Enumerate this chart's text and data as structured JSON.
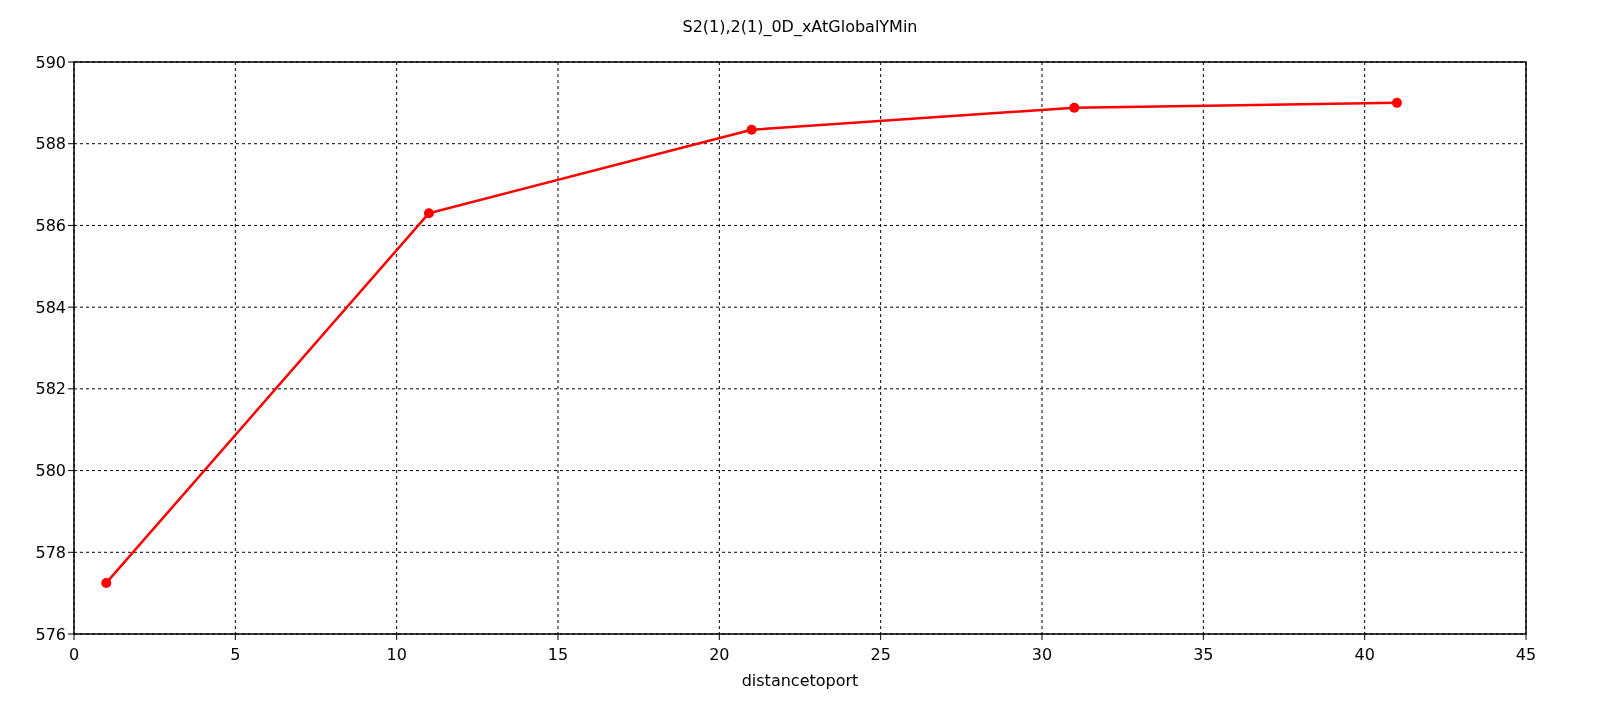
{
  "chart_data": {
    "type": "line",
    "title": "S2(1),2(1)_0D_xAtGlobalYMin",
    "xlabel": "distancetoport",
    "x": [
      1,
      11,
      21,
      31,
      41
    ],
    "series": [
      {
        "color": "#ff0000",
        "values": [
          577.25,
          586.3,
          588.34,
          588.88,
          589.0
        ]
      }
    ],
    "xlim": [
      0,
      45
    ],
    "xticks": [
      0,
      5,
      10,
      15,
      20,
      25,
      30,
      35,
      40,
      45
    ],
    "ylim": [
      576,
      590
    ],
    "yticks": [
      576,
      578,
      580,
      582,
      584,
      586,
      588,
      590
    ],
    "grid": true,
    "marker": "circle",
    "line_style": "solid"
  }
}
